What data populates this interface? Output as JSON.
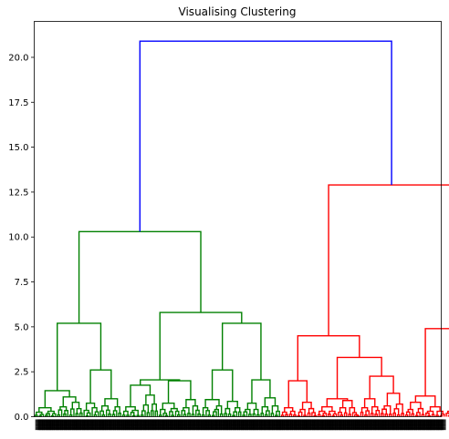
{
  "chart_data": {
    "type": "dendrogram",
    "title": "Visualising Clustering",
    "xlabel": "",
    "ylabel": "",
    "ylim": [
      0,
      22
    ],
    "yticks": [
      0.0,
      2.5,
      5.0,
      7.5,
      10.0,
      12.5,
      15.0,
      17.5,
      20.0
    ],
    "ytick_labels": [
      "0.0",
      "2.5",
      "5.0",
      "7.5",
      "10.0",
      "12.5",
      "15.0",
      "17.5",
      "20.0"
    ],
    "grid": false,
    "leaf_count": 200,
    "colors": {
      "cluster_1": "#008000",
      "cluster_2": "#ff0000",
      "above_threshold": "#0000ff"
    },
    "main_merges": [
      {
        "name": "root",
        "height": 20.9,
        "color": "#0000ff"
      },
      {
        "name": "cluster_1",
        "height": 10.3,
        "color": "#008000"
      },
      {
        "name": "cluster_2",
        "height": 12.9,
        "color": "#ff0000"
      },
      {
        "name": "cluster_1_left",
        "height": 5.2,
        "color": "#008000"
      },
      {
        "name": "cluster_1_right",
        "height": 5.8,
        "color": "#008000"
      },
      {
        "name": "cluster_1_right_a",
        "height": 2.05,
        "color": "#008000"
      },
      {
        "name": "cluster_1_right_b",
        "height": 5.2,
        "color": "#008000"
      },
      {
        "name": "cluster_2_left",
        "height": 4.5,
        "color": "#ff0000"
      },
      {
        "name": "cluster_2_right",
        "height": 4.9,
        "color": "#ff0000"
      },
      {
        "name": "cluster_2_left_b",
        "height": 3.3,
        "color": "#ff0000"
      },
      {
        "name": "cluster_2_right_b",
        "height": 3.2,
        "color": "#ff0000"
      }
    ]
  }
}
